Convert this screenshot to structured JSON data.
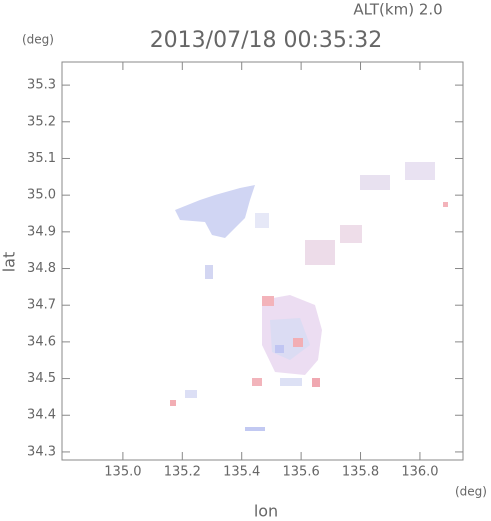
{
  "chart_data": {
    "type": "map",
    "title": "2013/07/18 00:35:32",
    "subtitle": "ALT(km) 2.0",
    "ylabel": "lat",
    "yunit": "(deg)",
    "xlabel": "lon",
    "xunit": "(deg)",
    "xlim": [
      134.795,
      136.145
    ],
    "ylim": [
      34.278,
      35.363
    ],
    "xticks": [
      {
        "value": 135,
        "label": "135.0"
      },
      135.2,
      135.4,
      135.6,
      135.8,
      {
        "value": 136,
        "label": "136.0"
      }
    ],
    "yticks": [
      34.3,
      34.4,
      34.5,
      34.6,
      34.7,
      34.8,
      34.9,
      {
        "value": 35,
        "label": "35.0"
      },
      35.1,
      35.2,
      35.3
    ]
  }
}
